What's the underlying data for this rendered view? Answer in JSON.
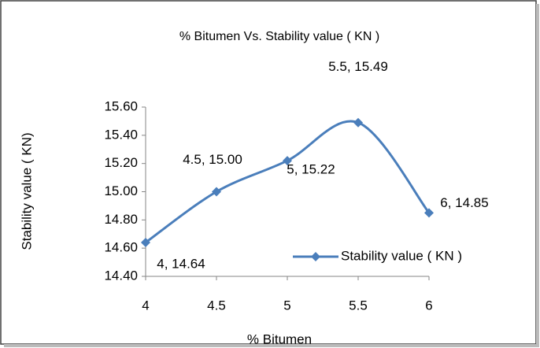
{
  "chart_data": {
    "type": "line",
    "title": "% Bitumen Vs. Stability  value ( KN )",
    "x_label": "% Bitumen",
    "y_label": "Stability  value ( KN)",
    "x": [
      4,
      4.5,
      5,
      5.5,
      6
    ],
    "series": [
      {
        "name": "Stability  value ( KN )",
        "color": "#4a7ebb",
        "smooth": true,
        "marker": "diamond",
        "values": [
          14.64,
          15.0,
          15.22,
          15.49,
          14.85
        ],
        "value_labels": [
          "4, 14.64",
          "4.5, 15.00",
          "5, 15.22",
          "5.5, 15.49",
          "6, 14.85"
        ]
      }
    ],
    "xlim": [
      4,
      6
    ],
    "xticks": [
      4,
      4.5,
      5,
      5.5,
      6
    ],
    "ylim": [
      14.4,
      15.6
    ],
    "yticks": [
      {
        "value": 14.4,
        "label": "14.40"
      },
      {
        "value": 14.6,
        "label": "14.60"
      },
      {
        "value": 14.8,
        "label": "14.80"
      },
      {
        "value": 15.0,
        "label": "15.00"
      },
      {
        "value": 15.2,
        "label": "15.20"
      },
      {
        "value": 15.4,
        "label": "15.40"
      },
      {
        "value": 15.6,
        "label": "15.60"
      }
    ],
    "grid": false,
    "legend": "inside-right"
  }
}
